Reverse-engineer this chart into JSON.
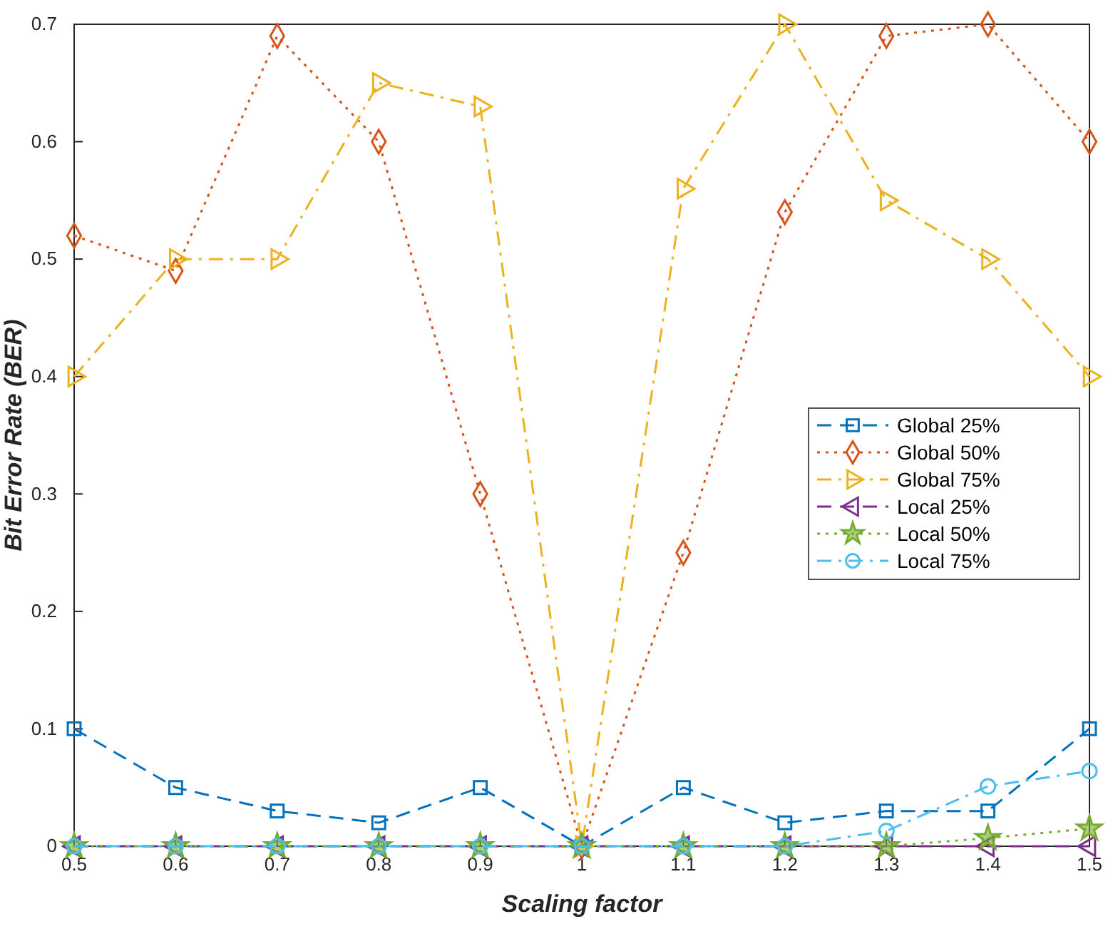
{
  "chart_data": {
    "type": "line",
    "xlabel": "Scaling factor",
    "ylabel": "Bit Error Rate (BER)",
    "x": [
      0.5,
      0.6,
      0.7,
      0.8,
      0.9,
      1,
      1.1,
      1.2,
      1.3,
      1.4,
      1.5
    ],
    "xlim": [
      0.5,
      1.5
    ],
    "xticks": [
      0.5,
      0.6,
      0.7,
      0.8,
      0.9,
      1,
      1.1,
      1.2,
      1.3,
      1.4,
      1.5
    ],
    "ylim": [
      0,
      0.7
    ],
    "yticks": [
      0,
      0.1,
      0.2,
      0.3,
      0.4,
      0.5,
      0.6,
      0.7
    ],
    "grid": false,
    "legend": "right",
    "series": [
      {
        "name": "Global 25%",
        "color": "#0072bd",
        "marker": "square",
        "line_style": "dashed",
        "values": [
          0.1,
          0.05,
          0.03,
          0.02,
          0.05,
          0,
          0.05,
          0.02,
          0.03,
          0.03,
          0.1
        ]
      },
      {
        "name": "Global 50%",
        "color": "#d95319",
        "marker": "diamond",
        "line_style": "dotted",
        "values": [
          0.52,
          0.49,
          0.69,
          0.6,
          0.3,
          0,
          0.25,
          0.54,
          0.69,
          0.7,
          0.6
        ]
      },
      {
        "name": "Global 75%",
        "color": "#edb120",
        "marker": "triangle-right",
        "line_style": "dashdot",
        "values": [
          0.4,
          0.5,
          0.5,
          0.65,
          0.63,
          0,
          0.56,
          0.7,
          0.55,
          0.5,
          0.4
        ]
      },
      {
        "name": "Local 25%",
        "color": "#7e2f8e",
        "marker": "triangle-left",
        "line_style": "dashed",
        "values": [
          0,
          0,
          0,
          0,
          0,
          0,
          0,
          0,
          0,
          0,
          0
        ]
      },
      {
        "name": "Local 50%",
        "color": "#77ac30",
        "marker": "star",
        "line_style": "dotted",
        "values": [
          0,
          0,
          0,
          0,
          0,
          0,
          0,
          0,
          0,
          0.007,
          0.015
        ]
      },
      {
        "name": "Local 75%",
        "color": "#4dbeee",
        "marker": "circle",
        "line_style": "dashdot",
        "values": [
          0,
          0,
          0,
          0,
          0,
          0,
          0,
          0,
          0.013,
          0.051,
          0.064
        ]
      }
    ]
  }
}
